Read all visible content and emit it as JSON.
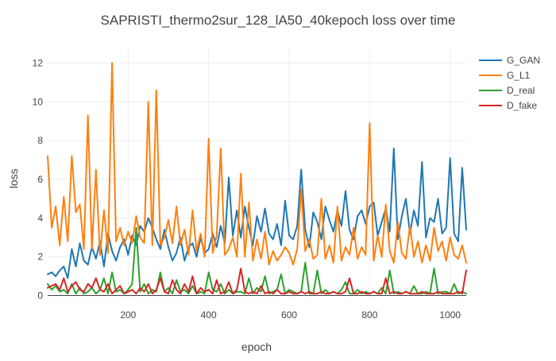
{
  "chart_data": {
    "type": "line",
    "title": "SAPRISTI_thermo2sur_128_lA50_40kepoch loss over time",
    "xlabel": "epoch",
    "ylabel": "loss",
    "xlim": [
      0,
      1040
    ],
    "ylim": [
      -0.1,
      12.8
    ],
    "x_ticks": [
      200,
      400,
      600,
      800,
      1000
    ],
    "y_ticks": [
      0,
      2,
      4,
      6,
      8,
      10,
      12
    ],
    "grid": true,
    "legend_position": "top-right",
    "x": [
      0,
      10,
      20,
      30,
      40,
      50,
      60,
      70,
      80,
      90,
      100,
      110,
      120,
      130,
      140,
      150,
      160,
      170,
      180,
      190,
      200,
      210,
      220,
      230,
      240,
      250,
      260,
      270,
      280,
      290,
      300,
      310,
      320,
      330,
      340,
      350,
      360,
      370,
      380,
      390,
      400,
      410,
      420,
      430,
      440,
      450,
      460,
      470,
      480,
      490,
      500,
      510,
      520,
      530,
      540,
      550,
      560,
      570,
      580,
      590,
      600,
      610,
      620,
      630,
      640,
      650,
      660,
      670,
      680,
      690,
      700,
      710,
      720,
      730,
      740,
      750,
      760,
      770,
      780,
      790,
      800,
      810,
      820,
      830,
      840,
      850,
      860,
      870,
      880,
      890,
      900,
      910,
      920,
      930,
      940,
      950,
      960,
      970,
      980,
      990,
      1000,
      1010,
      1020,
      1030,
      1040
    ],
    "series": [
      {
        "name": "G_GAN",
        "color": "#1f77b4",
        "values": [
          1.1,
          1.2,
          1.0,
          1.3,
          1.5,
          0.9,
          2.4,
          1.5,
          2.7,
          1.8,
          1.6,
          2.5,
          1.9,
          2.8,
          1.5,
          3.2,
          2.3,
          1.8,
          2.5,
          2.9,
          2.1,
          3.1,
          2.6,
          3.6,
          3.3,
          4.0,
          3.5,
          2.9,
          2.4,
          3.4,
          2.5,
          1.8,
          2.2,
          3.0,
          1.8,
          2.5,
          2.7,
          2.0,
          3.0,
          2.2,
          2.4,
          3.2,
          2.5,
          3.6,
          2.7,
          6.1,
          3.1,
          4.4,
          3.0,
          4.6,
          3.5,
          2.6,
          4.1,
          3.3,
          4.5,
          3.2,
          2.9,
          3.7,
          2.6,
          4.9,
          3.1,
          2.9,
          3.6,
          6.5,
          3.4,
          2.5,
          4.3,
          3.8,
          2.9,
          4.6,
          3.9,
          3.3,
          4.4,
          3.6,
          5.4,
          3.4,
          2.9,
          4.1,
          4.4,
          3.7,
          4.6,
          4.8,
          3.1,
          3.8,
          4.5,
          3.3,
          7.6,
          2.9,
          4.1,
          5.0,
          3.2,
          4.4,
          3.6,
          6.9,
          3.0,
          4.0,
          3.8,
          5.0,
          3.2,
          3.5,
          7.1,
          3.2,
          2.8,
          6.6,
          3.4
        ]
      },
      {
        "name": "G_L1",
        "color": "#ff7f0e",
        "values": [
          7.2,
          3.5,
          4.6,
          2.6,
          5.1,
          2.8,
          7.2,
          4.3,
          4.7,
          2.4,
          9.3,
          2.4,
          6.5,
          2.1,
          4.4,
          2.2,
          12.0,
          2.8,
          3.5,
          2.6,
          3.3,
          2.7,
          4.1,
          3.0,
          2.7,
          10.0,
          2.6,
          10.6,
          2.6,
          3.0,
          3.9,
          2.7,
          4.6,
          2.6,
          3.4,
          2.1,
          4.4,
          2.3,
          3.2,
          2.0,
          8.1,
          2.2,
          3.1,
          7.6,
          2.1,
          2.4,
          3.0,
          2.0,
          6.3,
          2.0,
          4.8,
          1.8,
          2.9,
          1.9,
          3.3,
          1.6,
          2.3,
          1.8,
          2.1,
          2.5,
          2.2,
          1.6,
          2.4,
          5.5,
          2.3,
          2.9,
          1.9,
          2.1,
          5.0,
          1.9,
          2.6,
          1.7,
          4.6,
          1.8,
          2.5,
          2.1,
          3.5,
          1.9,
          2.5,
          2.1,
          8.9,
          1.8,
          3.1,
          2.0,
          4.7,
          2.3,
          1.7,
          3.8,
          2.2,
          1.9,
          3.6,
          2.0,
          2.8,
          1.7,
          2.6,
          1.8,
          3.5,
          2.3,
          2.8,
          1.8,
          3.0,
          2.1,
          1.9,
          2.6,
          1.7
        ]
      },
      {
        "name": "D_real",
        "color": "#2ca02c",
        "values": [
          0.6,
          0.3,
          0.5,
          0.2,
          0.3,
          0.1,
          0.6,
          0.1,
          0.4,
          0.1,
          0.2,
          0.4,
          0.1,
          0.3,
          0.9,
          0.1,
          1.2,
          0.2,
          0.3,
          0.1,
          0.3,
          0.6,
          3.5,
          0.2,
          0.6,
          0.1,
          0.3,
          0.2,
          1.2,
          0.2,
          0.4,
          0.1,
          0.8,
          0.2,
          0.3,
          0.1,
          0.5,
          0.1,
          0.2,
          0.1,
          1.2,
          0.3,
          0.2,
          0.6,
          0.1,
          0.3,
          0.1,
          0.2,
          0.2,
          0.1,
          0.9,
          0.1,
          0.4,
          0.2,
          1.0,
          0.1,
          0.2,
          0.3,
          1.1,
          0.1,
          0.3,
          0.2,
          0.1,
          0.2,
          1.7,
          0.1,
          0.1,
          1.3,
          0.1,
          0.3,
          0.1,
          0.2,
          0.1,
          0.3,
          0.7,
          0.1,
          0.1,
          0.3,
          0.1,
          0.2,
          0.1,
          0.2,
          0.1,
          0.4,
          0.1,
          1.3,
          0.1,
          0.2,
          0.1,
          0.2,
          0.1,
          0.5,
          0.1,
          0.1,
          0.2,
          0.1,
          1.4,
          0.1,
          0.2,
          0.2,
          0.1,
          0.6,
          0.1,
          0.2,
          0.1
        ]
      },
      {
        "name": "D_fake",
        "color": "#d62728",
        "values": [
          0.4,
          0.5,
          0.6,
          0.3,
          0.9,
          0.2,
          0.5,
          0.7,
          0.3,
          0.2,
          0.6,
          0.4,
          0.9,
          0.3,
          0.2,
          0.6,
          0.1,
          0.3,
          0.5,
          0.1,
          0.2,
          0.3,
          0.1,
          0.4,
          0.2,
          0.6,
          0.1,
          0.3,
          0.9,
          0.2,
          0.1,
          0.8,
          0.3,
          0.1,
          0.6,
          0.2,
          1.0,
          0.1,
          0.4,
          0.2,
          0.3,
          0.1,
          0.8,
          0.1,
          0.2,
          0.7,
          0.1,
          0.3,
          1.4,
          0.2,
          0.1,
          0.2,
          0.1,
          0.5,
          0.1,
          0.2,
          0.1,
          0.3,
          0.1,
          0.1,
          0.2,
          0.1,
          0.1,
          0.2,
          0.1,
          0.2,
          0.1,
          0.1,
          0.2,
          0.1,
          0.1,
          0.2,
          0.1,
          0.1,
          0.2,
          0.9,
          0.1,
          0.1,
          0.2,
          0.1,
          0.1,
          0.2,
          0.1,
          0.1,
          0.9,
          0.1,
          0.2,
          0.1,
          0.1,
          0.2,
          0.1,
          0.1,
          0.1,
          0.2,
          0.1,
          0.1,
          0.1,
          0.2,
          0.1,
          0.1,
          0.1,
          0.1,
          0.2,
          0.1,
          1.3
        ]
      }
    ]
  }
}
